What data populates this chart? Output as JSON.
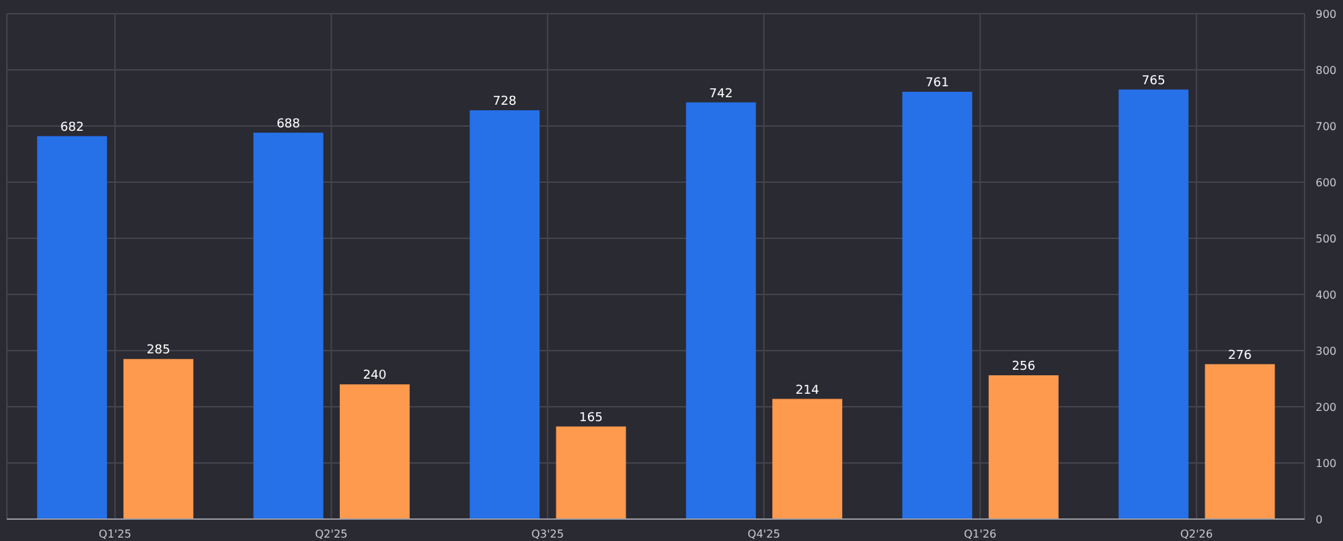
{
  "chart_data": {
    "type": "bar",
    "categories": [
      "Q1'25",
      "Q2'25",
      "Q3'25",
      "Q4'25",
      "Q1'26",
      "Q2'26"
    ],
    "series": [
      {
        "color": "#2670e8",
        "values": [
          682,
          688,
          728,
          742,
          761,
          765
        ]
      },
      {
        "color": "#fd9a4e",
        "values": [
          285,
          240,
          165,
          214,
          256,
          276
        ]
      }
    ],
    "ylim": [
      0,
      900
    ],
    "yticks": [
      0,
      100,
      200,
      300,
      400,
      500,
      600,
      700,
      800,
      900
    ],
    "grid": true,
    "data_labels": true
  }
}
